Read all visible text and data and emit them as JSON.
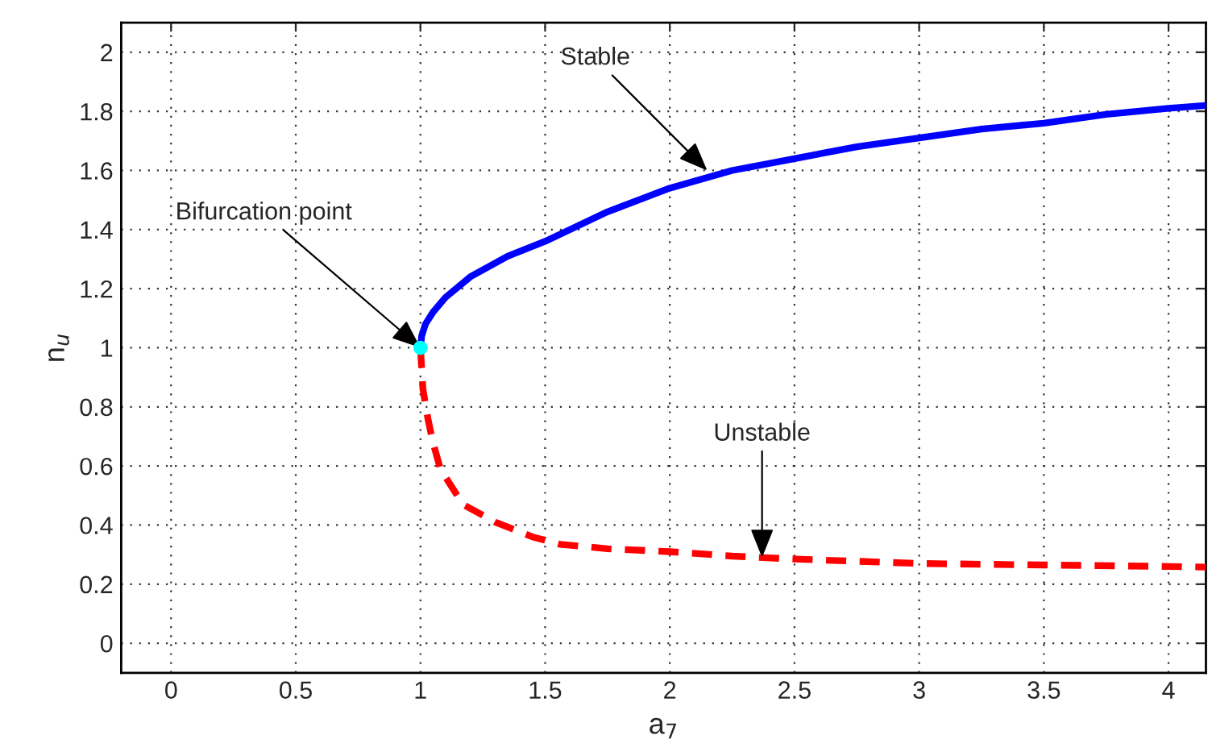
{
  "chart_data": {
    "type": "line",
    "xlabel": "a$_{7}$",
    "ylabel": "n$_{u}$",
    "xlim": [
      -0.2,
      4.15
    ],
    "ylim": [
      -0.1,
      2.1
    ],
    "xticks": [
      0,
      0.5,
      1,
      1.5,
      2,
      2.5,
      3,
      3.5,
      4
    ],
    "yticks": [
      0,
      0.2,
      0.4,
      0.6,
      0.8,
      1,
      1.2,
      1.4,
      1.6,
      1.8,
      2
    ],
    "grid": true,
    "legend": false,
    "series": [
      {
        "color": "#0000ff",
        "line_style": "solid",
        "x": [
          1,
          1.005,
          1.02,
          1.05,
          1.1,
          1.2,
          1.35,
          1.5,
          1.75,
          2,
          2.25,
          2.5,
          2.75,
          3,
          3.25,
          3.5,
          3.75,
          4,
          4.15
        ],
        "values": [
          1,
          1.04,
          1.08,
          1.12,
          1.17,
          1.24,
          1.31,
          1.36,
          1.46,
          1.54,
          1.6,
          1.64,
          1.68,
          1.71,
          1.74,
          1.76,
          1.79,
          1.81,
          1.82
        ]
      },
      {
        "color": "#ff0000",
        "line_style": "dashed",
        "x": [
          1,
          1.005,
          1.01,
          1.03,
          1.05,
          1.08,
          1.17,
          1.3,
          1.45,
          1.56,
          1.75,
          2,
          2.25,
          2.5,
          3,
          3.5,
          4,
          4.15
        ],
        "values": [
          1,
          0.93,
          0.86,
          0.76,
          0.68,
          0.59,
          0.47,
          0.41,
          0.36,
          0.335,
          0.32,
          0.31,
          0.295,
          0.285,
          0.27,
          0.265,
          0.26,
          0.258
        ]
      },
      {
        "type": "scatter",
        "color": "#00ffff",
        "marker": "circle",
        "x": [
          1
        ],
        "values": [
          1
        ]
      }
    ],
    "annotations": [
      {
        "text": "Bifurcation point",
        "x": 1,
        "y": 1
      },
      {
        "text": "Stable",
        "x": 2.15,
        "y": 1.6
      },
      {
        "text": "Unstable",
        "x": 2.37,
        "y": 0.29
      }
    ]
  }
}
